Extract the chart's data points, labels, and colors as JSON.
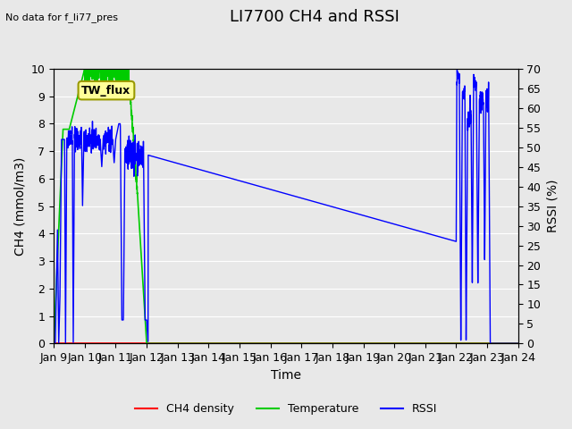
{
  "title": "LI7700 CH4 and RSSI",
  "top_left_text": "No data for f_li77_pres",
  "xlabel": "Time",
  "ylabel_left": "CH4 (mmol/m3)",
  "ylabel_right": "RSSI (%)",
  "ylim_left": [
    0.0,
    10.0
  ],
  "ylim_right": [
    0,
    70
  ],
  "yticks_left": [
    0.0,
    1.0,
    2.0,
    3.0,
    4.0,
    5.0,
    6.0,
    7.0,
    8.0,
    9.0,
    10.0
  ],
  "yticks_right": [
    0,
    5,
    10,
    15,
    20,
    25,
    30,
    35,
    40,
    45,
    50,
    55,
    60,
    65,
    70
  ],
  "xtick_labels": [
    "Jan 9",
    "Jan 10",
    "Jan 11",
    "Jan 12",
    "Jan 13",
    "Jan 14",
    "Jan 15",
    "Jan 16",
    "Jan 17",
    "Jan 18",
    "Jan 19",
    "Jan 20",
    "Jan 21",
    "Jan 22",
    "Jan 23",
    "Jan 24"
  ],
  "bg_color": "#e8e8e8",
  "plot_bg_color": "#e8e8e8",
  "grid_color": "white",
  "ch4_color": "#ff0000",
  "temp_color": "#00cc00",
  "rssi_color": "#0000ff",
  "legend_box_color": "#ffff99",
  "legend_box_label": "TW_flux",
  "title_fontsize": 13,
  "label_fontsize": 10,
  "tick_fontsize": 9
}
